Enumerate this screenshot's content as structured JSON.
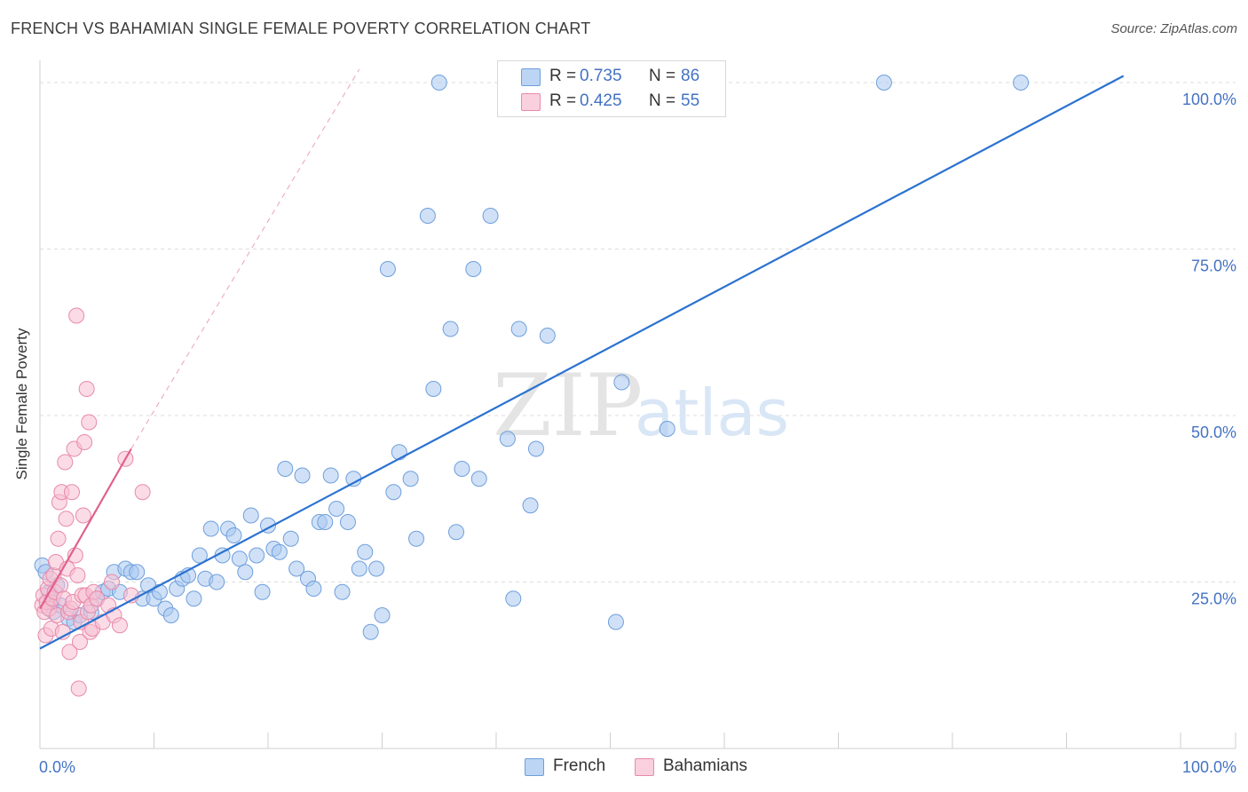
{
  "title": "FRENCH VS BAHAMIAN SINGLE FEMALE POVERTY CORRELATION CHART",
  "source": "Source: ZipAtlas.com",
  "watermark": {
    "zip": "ZIP",
    "atlas": "atlas"
  },
  "legend": {
    "french": {
      "r_label": "R =",
      "r_value": "0.735",
      "n_label": "N =",
      "n_value": "86"
    },
    "bahamians": {
      "r_label": "R =",
      "r_value": "0.425",
      "n_label": "N =",
      "n_value": "55"
    }
  },
  "bottom_legend": {
    "french": "French",
    "bahamians": "Bahamians"
  },
  "colors": {
    "french_fill": "#a9c8f0",
    "french_stroke": "#6f9fdc",
    "french_line": "#2b72d0",
    "bahamian_fill": "#f7bfd2",
    "bahamian_stroke": "#e88aaa",
    "bahamian_line": "#e0608d",
    "tick_text": "#4472c4",
    "grid": "#dddddd"
  },
  "chart_data": {
    "type": "scatter",
    "title": "FRENCH VS BAHAMIAN SINGLE FEMALE POVERTY CORRELATION CHART",
    "xlabel": "",
    "ylabel": "Single Female Poverty",
    "xlim": [
      0,
      100
    ],
    "ylim": [
      0,
      102
    ],
    "x_tick_labels": [
      "0.0%",
      "100.0%"
    ],
    "y_ticks": [
      {
        "value": 25,
        "label": "25.0%"
      },
      {
        "value": 50,
        "label": "50.0%"
      },
      {
        "value": 75,
        "label": "75.0%"
      },
      {
        "value": 100,
        "label": "100.0%"
      }
    ],
    "series": [
      {
        "name": "French",
        "r": 0.735,
        "n": 86,
        "trendline": {
          "x": [
            0,
            95
          ],
          "y": [
            15,
            101
          ]
        },
        "points": [
          [
            0.2,
            27.5
          ],
          [
            0.5,
            26.5
          ],
          [
            0.8,
            23.5
          ],
          [
            1.0,
            22.0
          ],
          [
            1.2,
            20.5
          ],
          [
            1.5,
            24.5
          ],
          [
            1.8,
            21.5
          ],
          [
            2.5,
            19.5
          ],
          [
            3.0,
            19.0
          ],
          [
            3.5,
            20.0
          ],
          [
            4.5,
            20.5
          ],
          [
            5.0,
            22.5
          ],
          [
            5.5,
            23.5
          ],
          [
            6.0,
            24.0
          ],
          [
            6.5,
            26.5
          ],
          [
            7.0,
            23.5
          ],
          [
            7.5,
            27.0
          ],
          [
            8.0,
            26.5
          ],
          [
            8.5,
            26.5
          ],
          [
            9.0,
            22.5
          ],
          [
            9.5,
            24.5
          ],
          [
            10.0,
            22.5
          ],
          [
            10.5,
            23.5
          ],
          [
            11.0,
            21.0
          ],
          [
            11.5,
            20.0
          ],
          [
            12.0,
            24.0
          ],
          [
            12.5,
            25.5
          ],
          [
            13.0,
            26.0
          ],
          [
            13.5,
            22.5
          ],
          [
            14.0,
            29.0
          ],
          [
            14.5,
            25.5
          ],
          [
            15.0,
            33.0
          ],
          [
            15.5,
            25.0
          ],
          [
            16.0,
            29.0
          ],
          [
            16.5,
            33.0
          ],
          [
            17.0,
            32.0
          ],
          [
            17.5,
            28.5
          ],
          [
            18.0,
            26.5
          ],
          [
            18.5,
            35.0
          ],
          [
            19.0,
            29.0
          ],
          [
            19.5,
            23.5
          ],
          [
            20.0,
            33.5
          ],
          [
            20.5,
            30.0
          ],
          [
            21.0,
            29.5
          ],
          [
            21.5,
            42.0
          ],
          [
            22.0,
            31.5
          ],
          [
            22.5,
            27.0
          ],
          [
            23.0,
            41.0
          ],
          [
            23.5,
            25.5
          ],
          [
            24.0,
            24.0
          ],
          [
            24.5,
            34.0
          ],
          [
            25.0,
            34.0
          ],
          [
            25.5,
            41.0
          ],
          [
            26.0,
            36.0
          ],
          [
            26.5,
            23.5
          ],
          [
            27.0,
            34.0
          ],
          [
            27.5,
            40.5
          ],
          [
            28.0,
            27.0
          ],
          [
            28.5,
            29.5
          ],
          [
            29.0,
            17.5
          ],
          [
            29.5,
            27.0
          ],
          [
            30.0,
            20.0
          ],
          [
            30.5,
            72.0
          ],
          [
            31.0,
            38.5
          ],
          [
            31.5,
            44.5
          ],
          [
            32.5,
            40.5
          ],
          [
            33.0,
            31.5
          ],
          [
            34.0,
            80.0
          ],
          [
            34.5,
            54.0
          ],
          [
            35.0,
            100.0
          ],
          [
            36.0,
            63.0
          ],
          [
            36.5,
            32.5
          ],
          [
            37.0,
            42.0
          ],
          [
            38.0,
            72.0
          ],
          [
            38.5,
            40.5
          ],
          [
            39.5,
            80.0
          ],
          [
            41.0,
            46.5
          ],
          [
            41.5,
            22.5
          ],
          [
            42.0,
            63.0
          ],
          [
            43.0,
            36.5
          ],
          [
            43.5,
            45.0
          ],
          [
            44.5,
            62.0
          ],
          [
            50.5,
            19.0
          ],
          [
            51.0,
            55.0
          ],
          [
            55.0,
            48.0
          ],
          [
            74.0,
            100.0
          ],
          [
            86.0,
            100.0
          ]
        ]
      },
      {
        "name": "Bahamians",
        "r": 0.425,
        "n": 55,
        "trendline": {
          "x": [
            0,
            8
          ],
          "y": [
            21,
            45
          ]
        },
        "trendline_extension": {
          "x": [
            8,
            28
          ],
          "y": [
            45,
            102
          ]
        },
        "points": [
          [
            0.2,
            21.5
          ],
          [
            0.3,
            23.0
          ],
          [
            0.4,
            20.5
          ],
          [
            0.5,
            17.0
          ],
          [
            0.6,
            22.0
          ],
          [
            0.7,
            24.0
          ],
          [
            0.8,
            21.0
          ],
          [
            0.9,
            25.5
          ],
          [
            1.0,
            18.0
          ],
          [
            1.1,
            22.5
          ],
          [
            1.2,
            26.0
          ],
          [
            1.3,
            23.5
          ],
          [
            1.4,
            28.0
          ],
          [
            1.5,
            20.0
          ],
          [
            1.6,
            31.5
          ],
          [
            1.7,
            37.0
          ],
          [
            1.8,
            24.5
          ],
          [
            1.9,
            38.5
          ],
          [
            2.0,
            17.5
          ],
          [
            2.1,
            22.5
          ],
          [
            2.2,
            43.0
          ],
          [
            2.3,
            34.5
          ],
          [
            2.4,
            27.0
          ],
          [
            2.5,
            20.5
          ],
          [
            2.6,
            14.5
          ],
          [
            2.7,
            21.0
          ],
          [
            2.8,
            38.5
          ],
          [
            2.9,
            22.0
          ],
          [
            3.0,
            45.0
          ],
          [
            3.1,
            29.0
          ],
          [
            3.2,
            65.0
          ],
          [
            3.3,
            26.0
          ],
          [
            3.4,
            9.0
          ],
          [
            3.5,
            16.0
          ],
          [
            3.6,
            19.0
          ],
          [
            3.7,
            23.0
          ],
          [
            3.8,
            35.0
          ],
          [
            3.9,
            46.0
          ],
          [
            4.0,
            23.0
          ],
          [
            4.1,
            54.0
          ],
          [
            4.2,
            20.5
          ],
          [
            4.3,
            49.0
          ],
          [
            4.4,
            17.5
          ],
          [
            4.5,
            21.5
          ],
          [
            4.6,
            18.0
          ],
          [
            4.7,
            23.5
          ],
          [
            5.0,
            22.5
          ],
          [
            5.5,
            19.0
          ],
          [
            6.0,
            21.5
          ],
          [
            6.3,
            25.0
          ],
          [
            6.5,
            20.0
          ],
          [
            7.0,
            18.5
          ],
          [
            7.5,
            43.5
          ],
          [
            8.0,
            23.0
          ],
          [
            9.0,
            38.5
          ]
        ]
      }
    ]
  }
}
